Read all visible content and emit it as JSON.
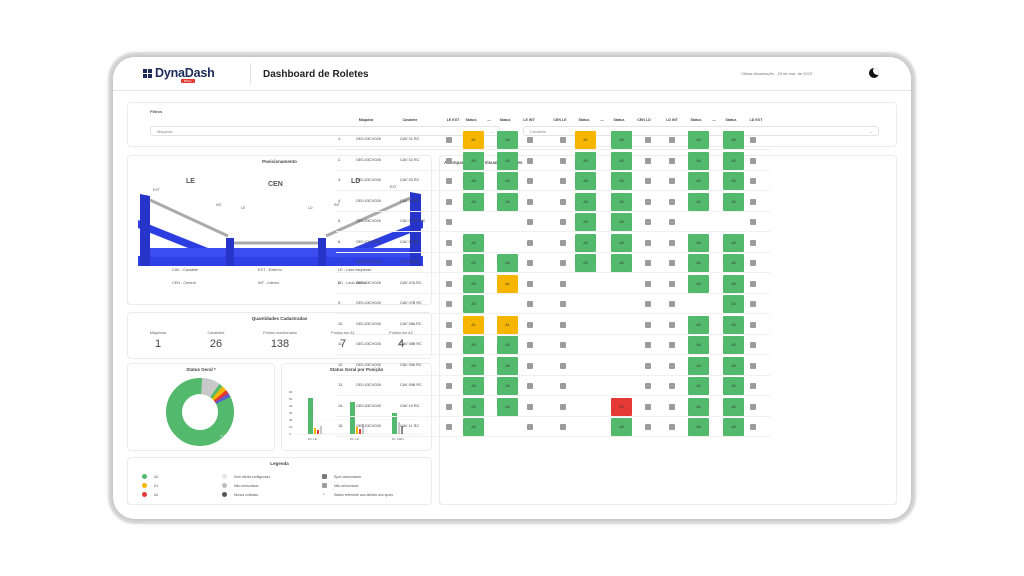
{
  "header": {
    "logo": "DynaDash",
    "logo_badge": "ROLL",
    "title": "Dashboard de Roletes",
    "last_update": "Última Atualização - 20 de mar. de 2023"
  },
  "filters": {
    "title": "Filtros",
    "machine_placeholder": "Máquina",
    "cavalete_placeholder": "Cavalete"
  },
  "positioning": {
    "title": "Posicionamento",
    "labels": {
      "le": "LE",
      "cen": "CEN",
      "ld": "LD"
    },
    "tags": {
      "ext_left": "EXT",
      "int_left": "INT",
      "le": "LE",
      "ld": "LD",
      "int_right": "INT",
      "ext_right": "EXT"
    },
    "legend": [
      "CAV - Cavalete",
      "EXT - Externo",
      "LE - Lado esquerdo",
      "CEN - Central",
      "INT - Interno",
      "LD - Lado direito"
    ]
  },
  "quantities": {
    "title": "Quantidades Cadastradas",
    "items": [
      {
        "label": "Máquinas",
        "value": "1"
      },
      {
        "label": "Cavaletes",
        "value": "26"
      },
      {
        "label": "Pontos monitorados",
        "value": "138"
      },
      {
        "label": "Pontos em A1",
        "value": "7"
      },
      {
        "label": "Pontos em A2",
        "value": "4"
      }
    ]
  },
  "status_geral": {
    "title": "Status Geral *",
    "center_label": "",
    "slice_label": "77.5%"
  },
  "status_posicao": {
    "title": "Status Geral por Posição",
    "categories": [
      "Ps. LE",
      "Ps. LD",
      "Ps. CEN"
    ],
    "y_ticks": [
      "60",
      "50",
      "40",
      "30",
      "20",
      "10",
      "0"
    ]
  },
  "legend": {
    "title": "Legenda",
    "items": [
      {
        "label": "A0",
        "color": "#52b96d"
      },
      {
        "label": "A1",
        "color": "#f6b600"
      },
      {
        "label": "A2",
        "color": "#e53935"
      },
      {
        "label": "Sem alerta configurado",
        "color": "#e6e6e6"
      },
      {
        "label": "Não sensoriado",
        "color": "#bdbdbd"
      },
      {
        "label": "Nunca coletado",
        "color": "#555555"
      },
      {
        "label": "Spot carbonizado",
        "color": "#7a7a7a"
      },
      {
        "label": "Não sensoriado",
        "color": "#9e9e9e"
      },
      {
        "label": "Status referente aos alertas dos spots",
        "color": ""
      }
    ]
  },
  "alarms": {
    "title": "Acompanhamento Visual de alarmes",
    "columns": [
      "Máquina",
      "Cavalete",
      "LE EXT",
      "Status",
      "—",
      "Status",
      "LE INT",
      "CEN LE",
      "Status",
      "—",
      "Status",
      "CEN LD",
      "LD INT",
      "Status",
      "—",
      "Status",
      "LD EXT"
    ],
    "rows": [
      {
        "n": "1.",
        "maq": "GE0-03CV026",
        "cav": "CAV 01 RC"
      },
      {
        "n": "2.",
        "maq": "GE0-03CV026",
        "cav": "CAV 02 RC"
      },
      {
        "n": "3.",
        "maq": "GE0-03CV026",
        "cav": "CAV 03 RC"
      },
      {
        "n": "4.",
        "maq": "GE0-03CV026",
        "cav": "CAV 04 RC"
      },
      {
        "n": "5.",
        "maq": "GE0-03CV026",
        "cav": "CAV 04 RT RC"
      },
      {
        "n": "6.",
        "maq": "GE0-03CV026",
        "cav": "CAV 05 RC"
      },
      {
        "n": "7.",
        "maq": "GE0-03CV026",
        "cav": "CAV 06 RC"
      },
      {
        "n": "8.",
        "maq": "GE0-03CV026",
        "cav": "CAV 07A RC"
      },
      {
        "n": "9.",
        "maq": "GE0-03CV026",
        "cav": "CAV 07B RC"
      },
      {
        "n": "10.",
        "maq": "GE0-03CV026",
        "cav": "CAV 08A RC"
      },
      {
        "n": "11.",
        "maq": "GE0-03CV026",
        "cav": "CAV 08B RC"
      },
      {
        "n": "12.",
        "maq": "GE0-03CV026",
        "cav": "CAV 09A RC"
      },
      {
        "n": "13.",
        "maq": "GE0-03CV026",
        "cav": "CAV 09B RC"
      },
      {
        "n": "14.",
        "maq": "GE0-03CV026",
        "cav": "CAV 10 RC"
      },
      {
        "n": "15.",
        "maq": "GE0-03CV026",
        "cav": "CAV 11 RC"
      }
    ],
    "grid": [
      [
        "A1y",
        "A0",
        "",
        "A1y",
        "A0",
        "",
        "A0",
        "A0"
      ],
      [
        "A0",
        "A0",
        "",
        "A0",
        "A0",
        "",
        "A0",
        "A0"
      ],
      [
        "A0",
        "A0",
        "",
        "A0",
        "A0",
        "",
        "A0",
        "A0"
      ],
      [
        "A0",
        "A0",
        "",
        "A0",
        "A0",
        "",
        "A0",
        "A0"
      ],
      [
        "",
        "",
        "",
        "A0",
        "A0",
        "",
        "",
        ""
      ],
      [
        "A0",
        "",
        "",
        "A0",
        "A0",
        "",
        "A0",
        "A0"
      ],
      [
        "A0",
        "A0",
        "",
        "A0",
        "A0",
        "",
        "A0",
        "A0"
      ],
      [
        "A0",
        "A1y",
        "",
        "",
        "",
        "",
        "A0",
        "A0"
      ],
      [
        "A0",
        "",
        "",
        "",
        "",
        "",
        "",
        "A0"
      ],
      [
        "A1y",
        "A1y",
        "",
        "",
        "",
        "",
        "A0",
        "A0"
      ],
      [
        "A0",
        "A0",
        "",
        "",
        "",
        "",
        "A0",
        "A0"
      ],
      [
        "A0",
        "A0",
        "",
        "",
        "",
        "",
        "A0",
        "A0"
      ],
      [
        "A0",
        "A0",
        "",
        "",
        "",
        "",
        "A0",
        "A0"
      ],
      [
        "A0",
        "A0",
        "",
        "",
        "A2r",
        "",
        "A0",
        "A0"
      ],
      [
        "A0",
        "",
        "",
        "",
        "A0",
        "",
        "A0",
        "A0"
      ]
    ]
  }
}
